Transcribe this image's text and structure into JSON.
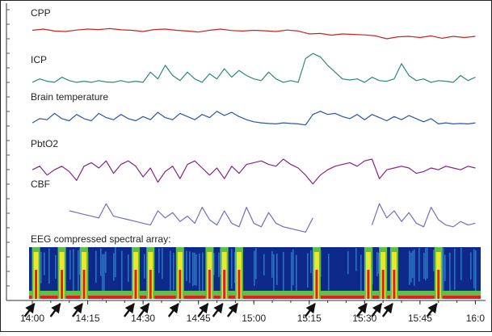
{
  "chart_data": {
    "type": "line",
    "xlabel": "",
    "ylabel": "",
    "x_ticks": [
      "14:00",
      "14:15",
      "14:30",
      "14:45",
      "15:00",
      "15:15",
      "15:30",
      "15:45",
      "16:0"
    ],
    "x_tick_values": [
      0,
      15,
      30,
      45,
      60,
      75,
      90,
      105,
      120
    ],
    "xlim": [
      0,
      121
    ],
    "grid": false,
    "series": [
      {
        "name": "CPP",
        "color": "#cc2222",
        "x": [
          0,
          3,
          6,
          9,
          12,
          15,
          18,
          21,
          24,
          27,
          30,
          33,
          36,
          39,
          42,
          45,
          48,
          51,
          54,
          57,
          60,
          63,
          66,
          69,
          72,
          75,
          78,
          81,
          84,
          87,
          90,
          93,
          96,
          99,
          102,
          105,
          108,
          111,
          114,
          117,
          120
        ],
        "y": [
          0.55,
          0.6,
          0.52,
          0.5,
          0.56,
          0.6,
          0.58,
          0.62,
          0.57,
          0.55,
          0.5,
          0.58,
          0.6,
          0.55,
          0.52,
          0.48,
          0.55,
          0.6,
          0.54,
          0.52,
          0.55,
          0.53,
          0.5,
          0.56,
          0.52,
          0.4,
          0.42,
          0.35,
          0.4,
          0.38,
          0.36,
          0.32,
          0.2,
          0.28,
          0.3,
          0.25,
          0.32,
          0.22,
          0.3,
          0.25,
          0.3
        ]
      },
      {
        "name": "ICP",
        "color": "#2a8a7a",
        "x": [
          0,
          2,
          4,
          6,
          8,
          10,
          12,
          14,
          16,
          18,
          20,
          22,
          24,
          26,
          28,
          30,
          32,
          34,
          36,
          38,
          40,
          42,
          44,
          46,
          48,
          50,
          52,
          54,
          56,
          58,
          60,
          62,
          64,
          66,
          68,
          70,
          72,
          74,
          76,
          78,
          80,
          82,
          84,
          86,
          88,
          90,
          92,
          94,
          96,
          98,
          100,
          102,
          104,
          106,
          108,
          110,
          112,
          114,
          116,
          118,
          120
        ],
        "y": [
          0.05,
          0.15,
          0.08,
          0.05,
          0.2,
          0.1,
          0.05,
          0.08,
          0.05,
          0.1,
          0.06,
          0.05,
          0.1,
          0.05,
          0.08,
          0.05,
          0.35,
          0.15,
          0.55,
          0.25,
          0.1,
          0.35,
          0.15,
          0.05,
          0.3,
          0.15,
          0.45,
          0.2,
          0.4,
          0.25,
          0.15,
          0.1,
          0.35,
          0.15,
          0.05,
          0.1,
          0.05,
          0.75,
          0.9,
          0.8,
          0.55,
          0.35,
          0.15,
          0.12,
          0.15,
          0.05,
          0.2,
          0.1,
          0.08,
          0.15,
          0.6,
          0.25,
          0.1,
          0.15,
          0.05,
          0.1,
          0.08,
          0.05,
          0.25,
          0.1,
          0.2
        ]
      },
      {
        "name": "Brain temperature",
        "color": "#2a55aa",
        "x": [
          0,
          2,
          4,
          6,
          8,
          10,
          12,
          14,
          16,
          18,
          20,
          22,
          24,
          26,
          28,
          30,
          32,
          34,
          36,
          38,
          40,
          42,
          44,
          46,
          48,
          50,
          52,
          54,
          56,
          58,
          60,
          62,
          64,
          66,
          68,
          70,
          72,
          74,
          76,
          78,
          80,
          82,
          84,
          86,
          88,
          90,
          92,
          94,
          96,
          98,
          100,
          102,
          104,
          106,
          108,
          110,
          112,
          114,
          116,
          118,
          120
        ],
        "y": [
          0.15,
          0.35,
          0.3,
          0.6,
          0.35,
          0.25,
          0.55,
          0.35,
          0.25,
          0.6,
          0.4,
          0.3,
          0.55,
          0.35,
          0.25,
          0.45,
          0.3,
          0.65,
          0.4,
          0.3,
          0.6,
          0.45,
          0.3,
          0.55,
          0.4,
          0.7,
          0.5,
          0.65,
          0.45,
          0.3,
          0.2,
          0.15,
          0.12,
          0.1,
          0.15,
          0.12,
          0.1,
          0.05,
          0.55,
          0.7,
          0.55,
          0.6,
          0.45,
          0.35,
          0.55,
          0.3,
          0.55,
          0.4,
          0.25,
          0.45,
          0.3,
          0.5,
          0.35,
          0.2,
          0.35,
          0.1,
          0.15,
          0.1,
          0.12,
          0.1,
          0.15
        ]
      },
      {
        "name": "PbtO2",
        "color": "#882288",
        "x": [
          0,
          2,
          4,
          6,
          8,
          10,
          12,
          14,
          16,
          18,
          20,
          22,
          24,
          26,
          28,
          30,
          32,
          34,
          36,
          38,
          40,
          42,
          44,
          46,
          48,
          50,
          52,
          54,
          56,
          58,
          60,
          62,
          64,
          66,
          68,
          70,
          72,
          74,
          76,
          78,
          80,
          82,
          84,
          86,
          88,
          90,
          92,
          94,
          96,
          98,
          100,
          102,
          104,
          106,
          108,
          110,
          112,
          114,
          116,
          118,
          120
        ],
        "y": [
          0.45,
          0.55,
          0.3,
          0.45,
          0.55,
          0.4,
          0.15,
          0.55,
          0.65,
          0.5,
          0.7,
          0.35,
          0.6,
          0.7,
          0.55,
          0.25,
          0.5,
          0.1,
          0.4,
          0.55,
          0.2,
          0.6,
          0.7,
          0.5,
          0.3,
          0.5,
          0.2,
          0.55,
          0.35,
          0.6,
          0.65,
          0.7,
          0.6,
          0.55,
          0.75,
          0.6,
          0.5,
          0.3,
          0.05,
          0.3,
          0.45,
          0.55,
          0.6,
          0.65,
          0.55,
          0.7,
          0.75,
          0.2,
          0.45,
          0.5,
          0.55,
          0.5,
          0.35,
          0.4,
          0.5,
          0.45,
          0.55,
          0.5,
          0.45,
          0.55,
          0.5
        ]
      },
      {
        "name": "CBF",
        "color": "#6f6fc0",
        "x": [
          10,
          12,
          14,
          16,
          18,
          20,
          22,
          24,
          26,
          28,
          30,
          32,
          34,
          36,
          38,
          40,
          42,
          44,
          46,
          48,
          50,
          52,
          54,
          56,
          58,
          60,
          62,
          64,
          66,
          68,
          70,
          72,
          74,
          76,
          null,
          92,
          94,
          96,
          98,
          100,
          102,
          104,
          106,
          108,
          110,
          112,
          114,
          116,
          118,
          120
        ],
        "y": [
          0.75,
          0.7,
          0.65,
          0.6,
          0.55,
          0.95,
          0.6,
          0.55,
          0.5,
          0.45,
          0.4,
          0.35,
          0.75,
          0.55,
          0.7,
          0.45,
          0.6,
          0.4,
          0.85,
          0.5,
          0.35,
          0.75,
          0.4,
          0.3,
          0.85,
          0.4,
          0.3,
          0.7,
          0.4,
          0.3,
          0.25,
          0.2,
          0.15,
          0.55,
          null,
          0.35,
          0.95,
          0.55,
          0.75,
          0.45,
          0.7,
          0.4,
          0.3,
          0.85,
          0.5,
          0.35,
          0.3,
          0.45,
          0.35,
          0.4
        ]
      }
    ],
    "spectral_array": {
      "title": "EEG compressed spectral array:",
      "colors": [
        "#0d2a8a",
        "#3a7fd0",
        "#7ec8e8",
        "#5fbf4a",
        "#e8e830",
        "#e02020"
      ],
      "burst_times": [
        1,
        8,
        14,
        28,
        32,
        40,
        48,
        52,
        56,
        77,
        91,
        95,
        98,
        110
      ]
    }
  }
}
